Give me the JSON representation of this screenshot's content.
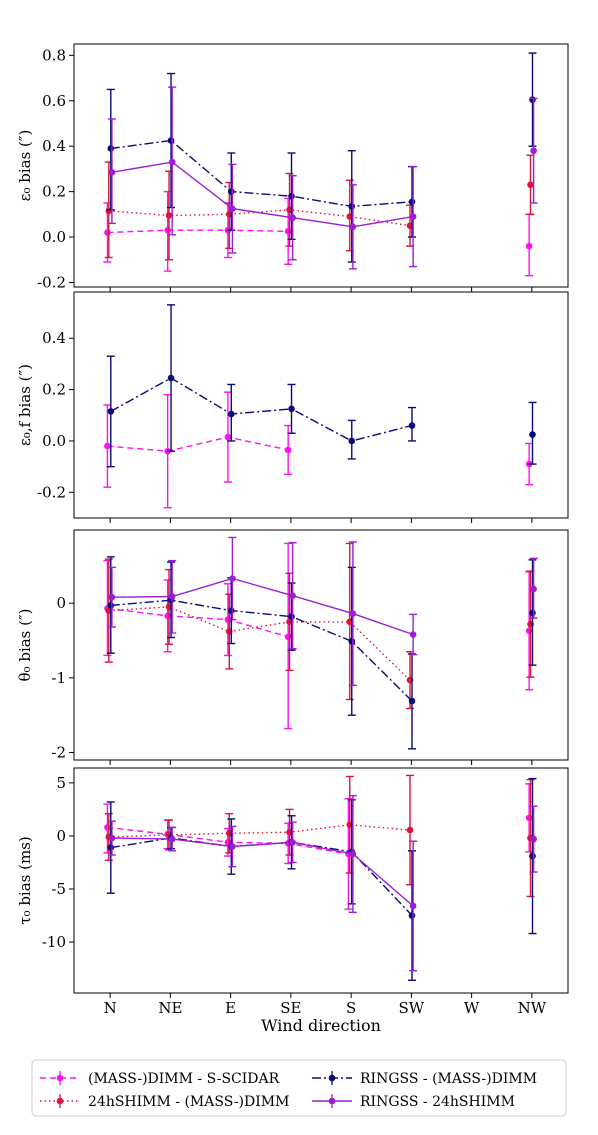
{
  "chart_data": {
    "type": "line",
    "categories": [
      "N",
      "NE",
      "E",
      "SE",
      "S",
      "SW",
      "W",
      "NW"
    ],
    "xlabel": "Wind direction",
    "legend": {
      "placement": "bottom",
      "entries": [
        {
          "label": "(MASS-)DIMM - S-SCIDAR",
          "series": "dimm_sscidar"
        },
        {
          "label": "RINGSS - (MASS-)DIMM",
          "series": "ringss_dimm"
        },
        {
          "label": "24hSHIMM - (MASS-)DIMM",
          "series": "shimm_dimm"
        },
        {
          "label": "RINGSS - 24hSHIMM",
          "series": "ringss_shimm"
        }
      ]
    },
    "styles": {
      "dimm_sscidar": {
        "color": "#ff10f0",
        "dash": "6,4",
        "offset": -0.34
      },
      "shimm_dimm": {
        "color": "#dc143c",
        "dash": "1.5,3",
        "offset": -0.17
      },
      "ringss_dimm": {
        "color": "#0a0a7a",
        "dash": "9,3,2,3",
        "offset": 0.08
      },
      "ringss_shimm": {
        "color": "#9b1ed6",
        "dash": "",
        "offset": 0.22
      }
    },
    "panels": [
      {
        "ylabel": "ε₀ bias (″)",
        "ylim": [
          -0.22,
          0.85
        ],
        "yticks": [
          "-0.2",
          "0.0",
          "0.2",
          "0.4",
          "0.6",
          "0.8"
        ],
        "ytick_values": [
          -0.2,
          0.0,
          0.2,
          0.4,
          0.6,
          0.8
        ],
        "series": [
          {
            "key": "dimm_sscidar",
            "points": [
              {
                "x": 0,
                "y": 0.02,
                "lo": -0.11,
                "hi": 0.15
              },
              {
                "x": 1,
                "y": 0.03,
                "lo": -0.15,
                "hi": 0.2
              },
              {
                "x": 2,
                "y": 0.03,
                "lo": -0.09,
                "hi": 0.15
              },
              {
                "x": 3,
                "y": 0.025,
                "lo": -0.12,
                "hi": 0.17
              },
              {
                "x": 7,
                "y": -0.04,
                "lo": -0.17,
                "hi": 0.1,
                "isolated": true
              }
            ]
          },
          {
            "key": "shimm_dimm",
            "points": [
              {
                "x": 0,
                "y": 0.115,
                "lo": -0.09,
                "hi": 0.33
              },
              {
                "x": 1,
                "y": 0.095,
                "lo": -0.1,
                "hi": 0.29
              },
              {
                "x": 2,
                "y": 0.1,
                "lo": -0.05,
                "hi": 0.24
              },
              {
                "x": 3,
                "y": 0.12,
                "lo": -0.04,
                "hi": 0.28
              },
              {
                "x": 4,
                "y": 0.09,
                "lo": -0.06,
                "hi": 0.25
              },
              {
                "x": 5,
                "y": 0.05,
                "lo": -0.04,
                "hi": 0.14
              },
              {
                "x": 7,
                "y": 0.23,
                "lo": 0.1,
                "hi": 0.36,
                "isolated": true
              }
            ]
          },
          {
            "key": "ringss_dimm",
            "points": [
              {
                "x": 0,
                "y": 0.39,
                "lo": 0.12,
                "hi": 0.65
              },
              {
                "x": 1,
                "y": 0.425,
                "lo": 0.13,
                "hi": 0.72
              },
              {
                "x": 2,
                "y": 0.2,
                "lo": 0.03,
                "hi": 0.37
              },
              {
                "x": 3,
                "y": 0.18,
                "lo": -0.01,
                "hi": 0.37
              },
              {
                "x": 4,
                "y": 0.135,
                "lo": -0.11,
                "hi": 0.38
              },
              {
                "x": 5,
                "y": 0.155,
                "lo": 0.0,
                "hi": 0.31
              },
              {
                "x": 7,
                "y": 0.605,
                "lo": 0.4,
                "hi": 0.81,
                "isolated": true
              }
            ]
          },
          {
            "key": "ringss_shimm",
            "points": [
              {
                "x": 0,
                "y": 0.285,
                "lo": 0.06,
                "hi": 0.52
              },
              {
                "x": 1,
                "y": 0.33,
                "lo": 0.01,
                "hi": 0.66
              },
              {
                "x": 2,
                "y": 0.125,
                "lo": -0.07,
                "hi": 0.32
              },
              {
                "x": 3,
                "y": 0.085,
                "lo": -0.1,
                "hi": 0.27
              },
              {
                "x": 4,
                "y": 0.045,
                "lo": -0.14,
                "hi": 0.23
              },
              {
                "x": 5,
                "y": 0.09,
                "lo": -0.13,
                "hi": 0.31
              },
              {
                "x": 7,
                "y": 0.38,
                "lo": 0.15,
                "hi": 0.61,
                "isolated": true
              }
            ]
          }
        ]
      },
      {
        "ylabel": "ε₀,f bias (″)",
        "ylim": [
          -0.3,
          0.58
        ],
        "yticks": [
          "-0.2",
          "0.0",
          "0.2",
          "0.4"
        ],
        "ytick_values": [
          -0.2,
          0.0,
          0.2,
          0.4
        ],
        "series": [
          {
            "key": "dimm_sscidar",
            "points": [
              {
                "x": 0,
                "y": -0.02,
                "lo": -0.18,
                "hi": 0.14
              },
              {
                "x": 1,
                "y": -0.04,
                "lo": -0.26,
                "hi": 0.18
              },
              {
                "x": 2,
                "y": 0.015,
                "lo": -0.16,
                "hi": 0.19
              },
              {
                "x": 3,
                "y": -0.035,
                "lo": -0.13,
                "hi": 0.06
              },
              {
                "x": 7,
                "y": -0.09,
                "lo": -0.17,
                "hi": -0.01,
                "isolated": true
              }
            ]
          },
          {
            "key": "ringss_dimm",
            "points": [
              {
                "x": 0,
                "y": 0.115,
                "lo": -0.1,
                "hi": 0.33
              },
              {
                "x": 1,
                "y": 0.245,
                "lo": -0.04,
                "hi": 0.53
              },
              {
                "x": 2,
                "y": 0.105,
                "lo": 0.0,
                "hi": 0.22
              },
              {
                "x": 3,
                "y": 0.125,
                "lo": 0.03,
                "hi": 0.22
              },
              {
                "x": 4,
                "y": 0.0,
                "lo": -0.07,
                "hi": 0.08
              },
              {
                "x": 5,
                "y": 0.06,
                "lo": 0.0,
                "hi": 0.13
              },
              {
                "x": 7,
                "y": 0.025,
                "lo": -0.09,
                "hi": 0.15,
                "isolated": true
              }
            ]
          }
        ]
      },
      {
        "ylabel": "θ₀ bias (″)",
        "ylim": [
          -2.1,
          0.98
        ],
        "yticks": [
          "-2",
          "-1",
          "0"
        ],
        "ytick_values": [
          -2,
          -1,
          0
        ],
        "series": [
          {
            "key": "dimm_sscidar",
            "points": [
              {
                "x": 0,
                "y": -0.07,
                "lo": -0.7,
                "hi": 0.57
              },
              {
                "x": 1,
                "y": -0.17,
                "lo": -0.65,
                "hi": 0.31
              },
              {
                "x": 2,
                "y": -0.22,
                "lo": -0.7,
                "hi": 0.26
              },
              {
                "x": 3,
                "y": -0.45,
                "lo": -1.68,
                "hi": 0.8
              },
              {
                "x": 7,
                "y": -0.37,
                "lo": -1.16,
                "hi": 0.42,
                "isolated": true
              }
            ]
          },
          {
            "key": "shimm_dimm",
            "points": [
              {
                "x": 0,
                "y": -0.1,
                "lo": -0.79,
                "hi": 0.59
              },
              {
                "x": 1,
                "y": -0.05,
                "lo": -0.55,
                "hi": 0.45
              },
              {
                "x": 2,
                "y": -0.38,
                "lo": -0.88,
                "hi": 0.12
              },
              {
                "x": 3,
                "y": -0.25,
                "lo": -0.9,
                "hi": 0.4
              },
              {
                "x": 4,
                "y": -0.25,
                "lo": -1.29,
                "hi": 0.8
              },
              {
                "x": 5,
                "y": -1.03,
                "lo": -1.41,
                "hi": -0.65
              },
              {
                "x": 7,
                "y": -0.28,
                "lo": -0.99,
                "hi": 0.43,
                "isolated": true
              }
            ]
          },
          {
            "key": "ringss_dimm",
            "points": [
              {
                "x": 0,
                "y": -0.03,
                "lo": -0.67,
                "hi": 0.62
              },
              {
                "x": 1,
                "y": 0.04,
                "lo": -0.46,
                "hi": 0.55
              },
              {
                "x": 2,
                "y": -0.1,
                "lo": -0.54,
                "hi": 0.34
              },
              {
                "x": 3,
                "y": -0.18,
                "lo": -0.63,
                "hi": 0.27
              },
              {
                "x": 4,
                "y": -0.51,
                "lo": -1.5,
                "hi": 0.48
              },
              {
                "x": 5,
                "y": -1.31,
                "lo": -1.95,
                "hi": -0.68
              },
              {
                "x": 7,
                "y": -0.13,
                "lo": -0.83,
                "hi": 0.58,
                "isolated": true
              }
            ]
          },
          {
            "key": "ringss_shimm",
            "points": [
              {
                "x": 0,
                "y": 0.08,
                "lo": -0.32,
                "hi": 0.48
              },
              {
                "x": 1,
                "y": 0.09,
                "lo": -0.4,
                "hi": 0.57
              },
              {
                "x": 2,
                "y": 0.33,
                "lo": -0.22,
                "hi": 0.88
              },
              {
                "x": 3,
                "y": 0.1,
                "lo": -0.61,
                "hi": 0.81
              },
              {
                "x": 4,
                "y": -0.14,
                "lo": -1.1,
                "hi": 0.82
              },
              {
                "x": 5,
                "y": -0.42,
                "lo": -0.69,
                "hi": -0.15
              },
              {
                "x": 7,
                "y": 0.19,
                "lo": -0.2,
                "hi": 0.6,
                "isolated": true
              }
            ]
          }
        ]
      },
      {
        "ylabel": "τ₀ bias (ms)",
        "ylim": [
          -14.8,
          6.4
        ],
        "yticks": [
          "-10",
          "-5",
          "0",
          "5"
        ],
        "ytick_values": [
          -10,
          -5,
          0,
          5
        ],
        "series": [
          {
            "key": "dimm_sscidar",
            "points": [
              {
                "x": 0,
                "y": 0.8,
                "lo": -1.6,
                "hi": 3.0
              },
              {
                "x": 1,
                "y": 0.15,
                "lo": -1.2,
                "hi": 1.5
              },
              {
                "x": 2,
                "y": -0.6,
                "lo": -1.9,
                "hi": 0.7
              },
              {
                "x": 3,
                "y": -0.7,
                "lo": -2.6,
                "hi": 1.2
              },
              {
                "x": 4,
                "y": -1.7,
                "lo": -6.9,
                "hi": 3.5
              },
              {
                "x": 7,
                "y": 1.7,
                "lo": -1.5,
                "hi": 4.9,
                "isolated": true
              }
            ]
          },
          {
            "key": "shimm_dimm",
            "points": [
              {
                "x": 0,
                "y": -0.1,
                "lo": -2.3,
                "hi": 2.1
              },
              {
                "x": 1,
                "y": 0.1,
                "lo": -1.3,
                "hi": 1.5
              },
              {
                "x": 2,
                "y": 0.25,
                "lo": -1.6,
                "hi": 2.1
              },
              {
                "x": 3,
                "y": 0.35,
                "lo": -1.8,
                "hi": 2.5
              },
              {
                "x": 4,
                "y": 1.05,
                "lo": -3.5,
                "hi": 5.6
              },
              {
                "x": 5,
                "y": 0.55,
                "lo": -4.6,
                "hi": 5.7
              },
              {
                "x": 7,
                "y": -0.2,
                "lo": -5.7,
                "hi": 5.3,
                "isolated": true
              }
            ]
          },
          {
            "key": "ringss_dimm",
            "points": [
              {
                "x": 0,
                "y": -1.1,
                "lo": -5.4,
                "hi": 3.2
              },
              {
                "x": 1,
                "y": -0.2,
                "lo": -1.2,
                "hi": 0.8
              },
              {
                "x": 2,
                "y": -1.0,
                "lo": -3.6,
                "hi": 1.6
              },
              {
                "x": 3,
                "y": -0.6,
                "lo": -3.1,
                "hi": 1.9
              },
              {
                "x": 4,
                "y": -1.5,
                "lo": -6.4,
                "hi": 3.4
              },
              {
                "x": 5,
                "y": -7.5,
                "lo": -13.6,
                "hi": -1.4
              },
              {
                "x": 7,
                "y": -1.9,
                "lo": -9.2,
                "hi": 5.4,
                "isolated": true
              }
            ]
          },
          {
            "key": "ringss_shimm",
            "points": [
              {
                "x": 0,
                "y": -0.2,
                "lo": -1.8,
                "hi": 1.4
              },
              {
                "x": 1,
                "y": -0.3,
                "lo": -1.4,
                "hi": 0.8
              },
              {
                "x": 2,
                "y": -1.0,
                "lo": -2.9,
                "hi": 0.9
              },
              {
                "x": 3,
                "y": -0.6,
                "lo": -2.5,
                "hi": 1.3
              },
              {
                "x": 4,
                "y": -1.7,
                "lo": -7.2,
                "hi": 3.8
              },
              {
                "x": 5,
                "y": -6.6,
                "lo": -12.7,
                "hi": -0.5
              },
              {
                "x": 7,
                "y": -0.3,
                "lo": -3.4,
                "hi": 2.8,
                "isolated": true
              }
            ]
          }
        ]
      }
    ]
  }
}
